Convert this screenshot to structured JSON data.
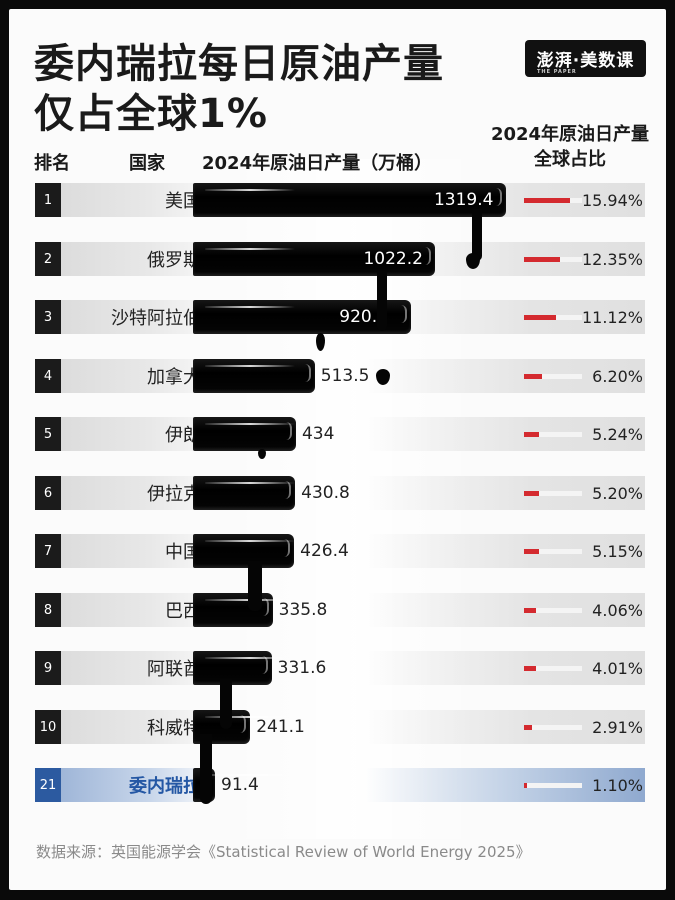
{
  "header": {
    "title_line1": "委内瑞拉每日原油产量",
    "title_line2": "仅占全球1%",
    "logo_text": "澎湃·美数课",
    "logo_sub": "THE PAPER"
  },
  "columns": {
    "rank": "排名",
    "country": "国家",
    "production": "2024年原油日产量（万桶）",
    "share_line1": "2024年原油日产量",
    "share_line2": "全球占比"
  },
  "rows": [
    {
      "rank": "1",
      "country": "美国",
      "value": "1319.4",
      "share": "15.94%"
    },
    {
      "rank": "2",
      "country": "俄罗斯",
      "value": "1022.2",
      "share": "12.35%"
    },
    {
      "rank": "3",
      "country": "沙特阿拉伯",
      "value": "920.3",
      "share": "11.12%"
    },
    {
      "rank": "4",
      "country": "加拿大",
      "value": "513.5",
      "share": "6.20%"
    },
    {
      "rank": "5",
      "country": "伊朗",
      "value": "434",
      "share": "5.24%"
    },
    {
      "rank": "6",
      "country": "伊拉克",
      "value": "430.8",
      "share": "5.20%"
    },
    {
      "rank": "7",
      "country": "中国",
      "value": "426.4",
      "share": "5.15%"
    },
    {
      "rank": "8",
      "country": "巴西",
      "value": "335.8",
      "share": "4.06%"
    },
    {
      "rank": "9",
      "country": "阿联酋",
      "value": "331.6",
      "share": "4.01%"
    },
    {
      "rank": "10",
      "country": "科威特",
      "value": "241.1",
      "share": "2.91%"
    },
    {
      "rank": "21",
      "country": "委内瑞拉",
      "value": "91.4",
      "share": "1.10%"
    }
  ],
  "colors": {
    "bar": "#000000",
    "share_fill": "#d42a2f",
    "highlight": "#2c5aa0"
  },
  "footer": {
    "source": "数据来源：英国能源学会《Statistical Review of World Energy 2025》"
  },
  "chart_data": {
    "type": "bar",
    "orientation": "horizontal",
    "title": "委内瑞拉每日原油产量仅占全球1%",
    "categories": [
      "美国",
      "俄罗斯",
      "沙特阿拉伯",
      "加拿大",
      "伊朗",
      "伊拉克",
      "中国",
      "巴西",
      "阿联酋",
      "科威特",
      "委内瑞拉"
    ],
    "ranks": [
      1,
      2,
      3,
      4,
      5,
      6,
      7,
      8,
      9,
      10,
      21
    ],
    "series": [
      {
        "name": "2024年原油日产量（万桶）",
        "values": [
          1319.4,
          1022.2,
          920.3,
          513.5,
          434,
          430.8,
          426.4,
          335.8,
          331.6,
          241.1,
          91.4
        ]
      },
      {
        "name": "2024年原油日产量全球占比 (%)",
        "values": [
          15.94,
          12.35,
          11.12,
          6.2,
          5.24,
          5.2,
          5.15,
          4.06,
          4.01,
          2.91,
          1.1
        ]
      }
    ],
    "highlight": "委内瑞拉",
    "xlabel": "2024年原油日产量（万桶）",
    "grid": false,
    "legend": "none",
    "source": "数据来源：英国能源学会《Statistical Review of World Energy 2025》"
  }
}
